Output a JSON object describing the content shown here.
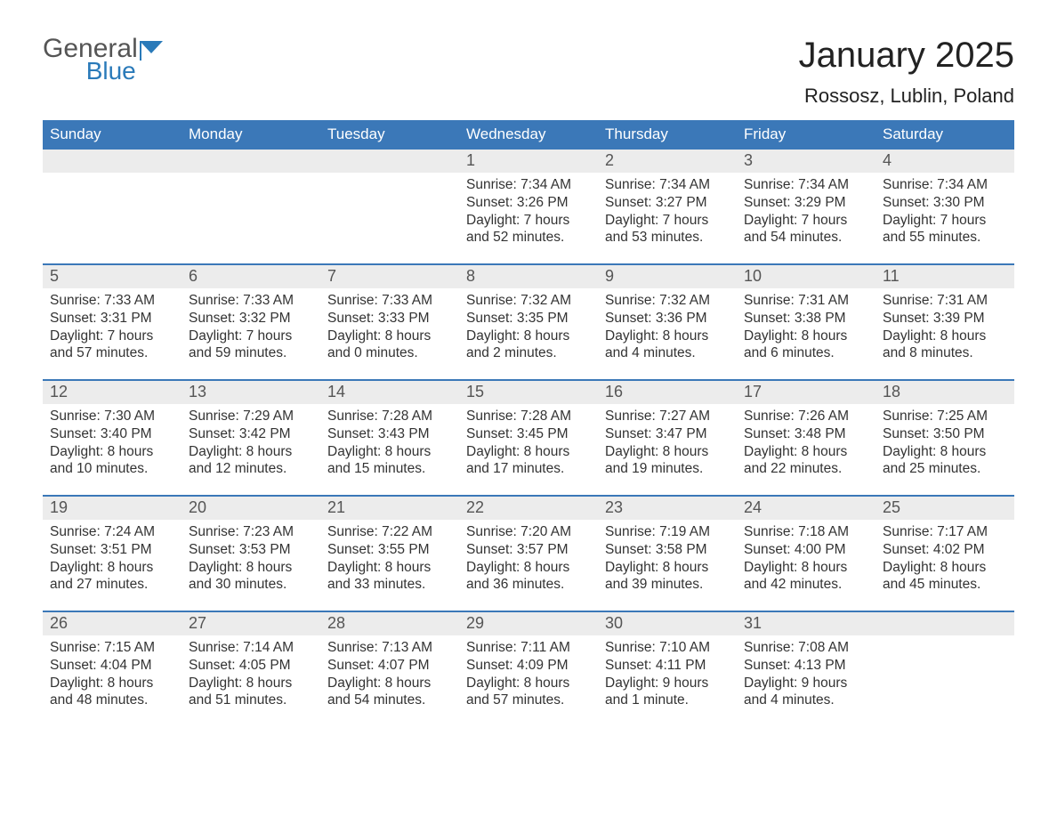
{
  "logo": {
    "word1": "General",
    "word2": "Blue"
  },
  "title": "January 2025",
  "location": "Rossosz, Lublin, Poland",
  "colors": {
    "header_blue": "#3b78b8",
    "daynum_bg": "#ececec",
    "text": "#333333",
    "logo_gray": "#555555",
    "logo_blue": "#2a7ab9",
    "background": "#ffffff"
  },
  "weekdays": [
    "Sunday",
    "Monday",
    "Tuesday",
    "Wednesday",
    "Thursday",
    "Friday",
    "Saturday"
  ],
  "weeks": [
    [
      {
        "n": "",
        "sunrise": "",
        "sunset": "",
        "daylight": ""
      },
      {
        "n": "",
        "sunrise": "",
        "sunset": "",
        "daylight": ""
      },
      {
        "n": "",
        "sunrise": "",
        "sunset": "",
        "daylight": ""
      },
      {
        "n": "1",
        "sunrise": "Sunrise: 7:34 AM",
        "sunset": "Sunset: 3:26 PM",
        "daylight": "Daylight: 7 hours and 52 minutes."
      },
      {
        "n": "2",
        "sunrise": "Sunrise: 7:34 AM",
        "sunset": "Sunset: 3:27 PM",
        "daylight": "Daylight: 7 hours and 53 minutes."
      },
      {
        "n": "3",
        "sunrise": "Sunrise: 7:34 AM",
        "sunset": "Sunset: 3:29 PM",
        "daylight": "Daylight: 7 hours and 54 minutes."
      },
      {
        "n": "4",
        "sunrise": "Sunrise: 7:34 AM",
        "sunset": "Sunset: 3:30 PM",
        "daylight": "Daylight: 7 hours and 55 minutes."
      }
    ],
    [
      {
        "n": "5",
        "sunrise": "Sunrise: 7:33 AM",
        "sunset": "Sunset: 3:31 PM",
        "daylight": "Daylight: 7 hours and 57 minutes."
      },
      {
        "n": "6",
        "sunrise": "Sunrise: 7:33 AM",
        "sunset": "Sunset: 3:32 PM",
        "daylight": "Daylight: 7 hours and 59 minutes."
      },
      {
        "n": "7",
        "sunrise": "Sunrise: 7:33 AM",
        "sunset": "Sunset: 3:33 PM",
        "daylight": "Daylight: 8 hours and 0 minutes."
      },
      {
        "n": "8",
        "sunrise": "Sunrise: 7:32 AM",
        "sunset": "Sunset: 3:35 PM",
        "daylight": "Daylight: 8 hours and 2 minutes."
      },
      {
        "n": "9",
        "sunrise": "Sunrise: 7:32 AM",
        "sunset": "Sunset: 3:36 PM",
        "daylight": "Daylight: 8 hours and 4 minutes."
      },
      {
        "n": "10",
        "sunrise": "Sunrise: 7:31 AM",
        "sunset": "Sunset: 3:38 PM",
        "daylight": "Daylight: 8 hours and 6 minutes."
      },
      {
        "n": "11",
        "sunrise": "Sunrise: 7:31 AM",
        "sunset": "Sunset: 3:39 PM",
        "daylight": "Daylight: 8 hours and 8 minutes."
      }
    ],
    [
      {
        "n": "12",
        "sunrise": "Sunrise: 7:30 AM",
        "sunset": "Sunset: 3:40 PM",
        "daylight": "Daylight: 8 hours and 10 minutes."
      },
      {
        "n": "13",
        "sunrise": "Sunrise: 7:29 AM",
        "sunset": "Sunset: 3:42 PM",
        "daylight": "Daylight: 8 hours and 12 minutes."
      },
      {
        "n": "14",
        "sunrise": "Sunrise: 7:28 AM",
        "sunset": "Sunset: 3:43 PM",
        "daylight": "Daylight: 8 hours and 15 minutes."
      },
      {
        "n": "15",
        "sunrise": "Sunrise: 7:28 AM",
        "sunset": "Sunset: 3:45 PM",
        "daylight": "Daylight: 8 hours and 17 minutes."
      },
      {
        "n": "16",
        "sunrise": "Sunrise: 7:27 AM",
        "sunset": "Sunset: 3:47 PM",
        "daylight": "Daylight: 8 hours and 19 minutes."
      },
      {
        "n": "17",
        "sunrise": "Sunrise: 7:26 AM",
        "sunset": "Sunset: 3:48 PM",
        "daylight": "Daylight: 8 hours and 22 minutes."
      },
      {
        "n": "18",
        "sunrise": "Sunrise: 7:25 AM",
        "sunset": "Sunset: 3:50 PM",
        "daylight": "Daylight: 8 hours and 25 minutes."
      }
    ],
    [
      {
        "n": "19",
        "sunrise": "Sunrise: 7:24 AM",
        "sunset": "Sunset: 3:51 PM",
        "daylight": "Daylight: 8 hours and 27 minutes."
      },
      {
        "n": "20",
        "sunrise": "Sunrise: 7:23 AM",
        "sunset": "Sunset: 3:53 PM",
        "daylight": "Daylight: 8 hours and 30 minutes."
      },
      {
        "n": "21",
        "sunrise": "Sunrise: 7:22 AM",
        "sunset": "Sunset: 3:55 PM",
        "daylight": "Daylight: 8 hours and 33 minutes."
      },
      {
        "n": "22",
        "sunrise": "Sunrise: 7:20 AM",
        "sunset": "Sunset: 3:57 PM",
        "daylight": "Daylight: 8 hours and 36 minutes."
      },
      {
        "n": "23",
        "sunrise": "Sunrise: 7:19 AM",
        "sunset": "Sunset: 3:58 PM",
        "daylight": "Daylight: 8 hours and 39 minutes."
      },
      {
        "n": "24",
        "sunrise": "Sunrise: 7:18 AM",
        "sunset": "Sunset: 4:00 PM",
        "daylight": "Daylight: 8 hours and 42 minutes."
      },
      {
        "n": "25",
        "sunrise": "Sunrise: 7:17 AM",
        "sunset": "Sunset: 4:02 PM",
        "daylight": "Daylight: 8 hours and 45 minutes."
      }
    ],
    [
      {
        "n": "26",
        "sunrise": "Sunrise: 7:15 AM",
        "sunset": "Sunset: 4:04 PM",
        "daylight": "Daylight: 8 hours and 48 minutes."
      },
      {
        "n": "27",
        "sunrise": "Sunrise: 7:14 AM",
        "sunset": "Sunset: 4:05 PM",
        "daylight": "Daylight: 8 hours and 51 minutes."
      },
      {
        "n": "28",
        "sunrise": "Sunrise: 7:13 AM",
        "sunset": "Sunset: 4:07 PM",
        "daylight": "Daylight: 8 hours and 54 minutes."
      },
      {
        "n": "29",
        "sunrise": "Sunrise: 7:11 AM",
        "sunset": "Sunset: 4:09 PM",
        "daylight": "Daylight: 8 hours and 57 minutes."
      },
      {
        "n": "30",
        "sunrise": "Sunrise: 7:10 AM",
        "sunset": "Sunset: 4:11 PM",
        "daylight": "Daylight: 9 hours and 1 minute."
      },
      {
        "n": "31",
        "sunrise": "Sunrise: 7:08 AM",
        "sunset": "Sunset: 4:13 PM",
        "daylight": "Daylight: 9 hours and 4 minutes."
      },
      {
        "n": "",
        "sunrise": "",
        "sunset": "",
        "daylight": ""
      }
    ]
  ]
}
